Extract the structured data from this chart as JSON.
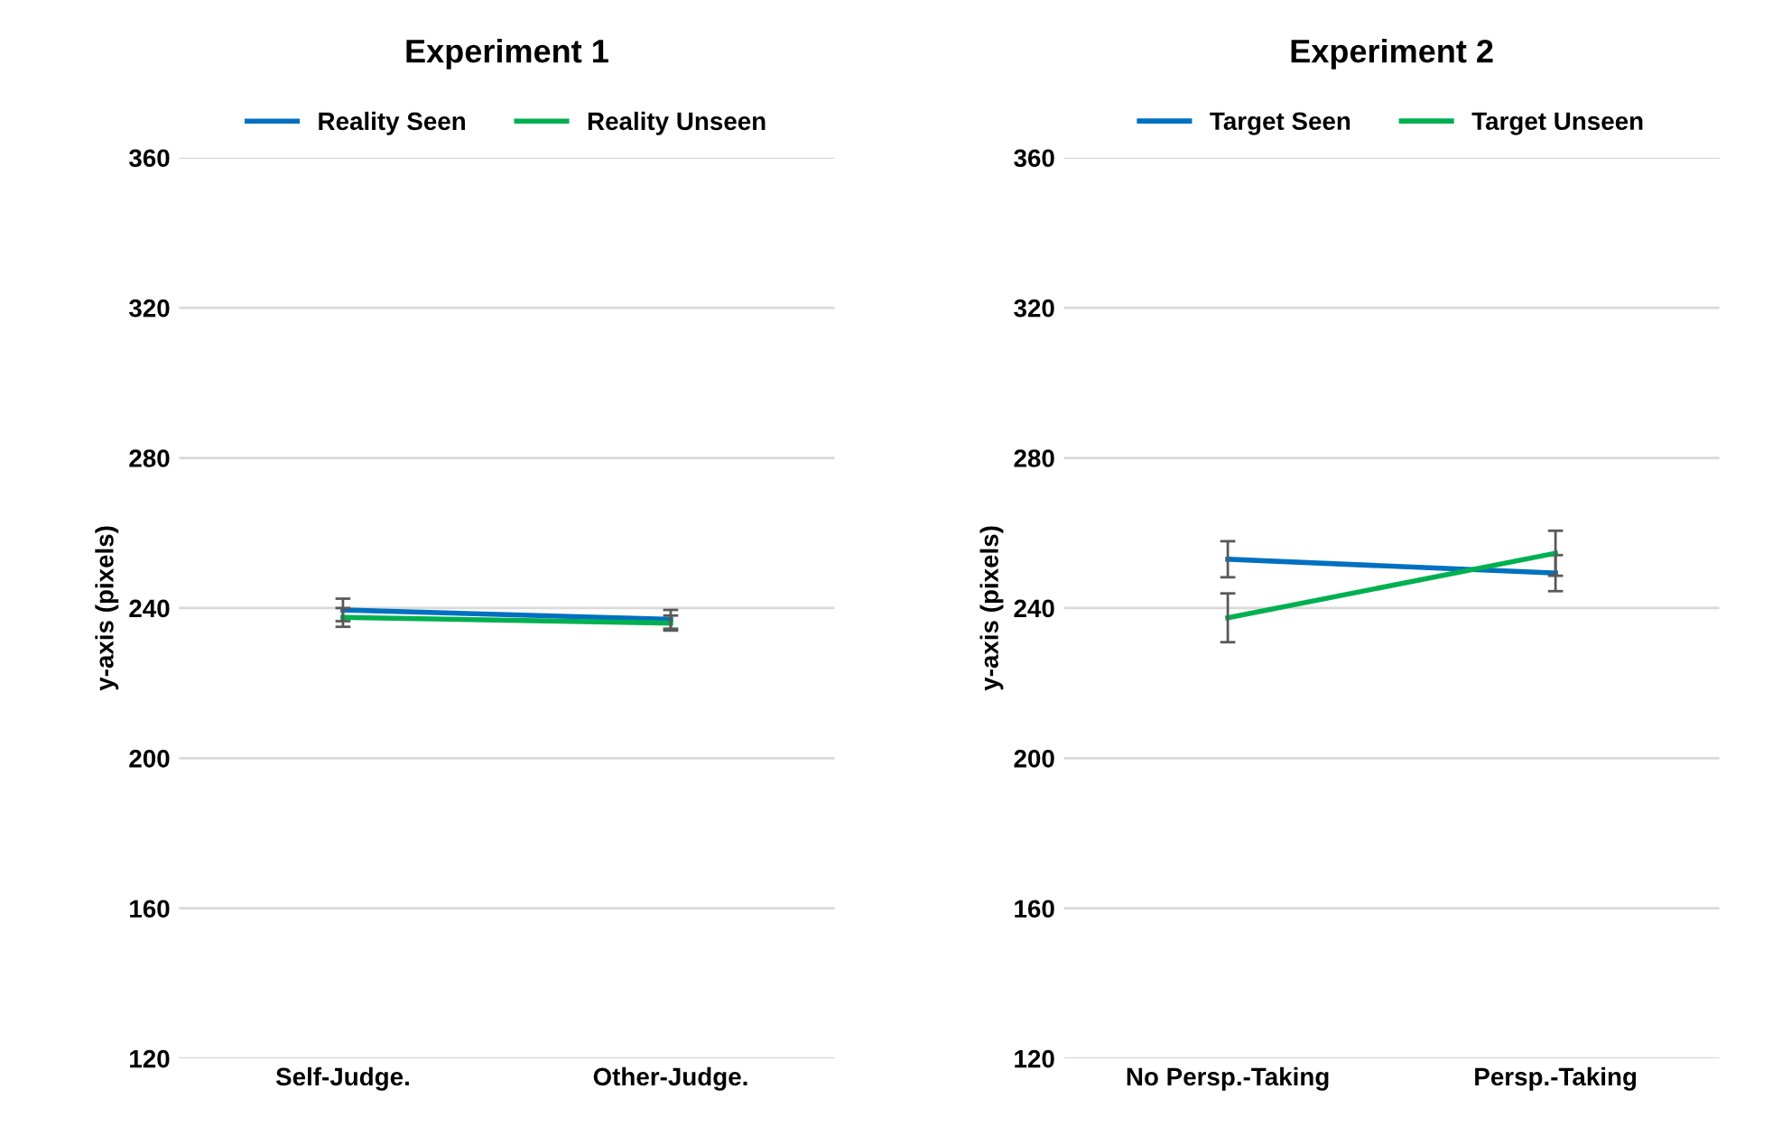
{
  "chart_data": [
    {
      "type": "line",
      "title": "Experiment 1",
      "ylabel": "y-axis (pixels)",
      "categories": [
        "Self-Judge.",
        "Other-Judge."
      ],
      "ylim": [
        120,
        360
      ],
      "yticks": [
        120,
        160,
        200,
        240,
        280,
        320,
        360
      ],
      "grid": "y",
      "legend": "top",
      "marker": "none",
      "series": [
        {
          "name": "Reality Seen",
          "color": "#0070c0",
          "values": [
            239.5,
            237
          ],
          "errors": [
            3,
            2.5
          ]
        },
        {
          "name": "Reality Unseen",
          "color": "#00b050",
          "values": [
            237.5,
            236
          ],
          "errors": [
            2.5,
            2
          ]
        }
      ]
    },
    {
      "type": "line",
      "title": "Experiment 2",
      "ylabel": "y-axis (pixels)",
      "categories": [
        "No Persp.-Taking",
        "Persp.-Taking"
      ],
      "ylim": [
        120,
        360
      ],
      "yticks": [
        120,
        160,
        200,
        240,
        280,
        320,
        360
      ],
      "grid": "y",
      "legend": "top",
      "marker": "none",
      "series": [
        {
          "name": "Target Seen",
          "color": "#0070c0",
          "values": [
            253,
            249.3
          ],
          "errors": [
            4.8,
            4.8
          ]
        },
        {
          "name": "Target Unseen",
          "color": "#00b050",
          "values": [
            237.4,
            254.6
          ],
          "errors": [
            6.5,
            6
          ]
        }
      ]
    }
  ]
}
